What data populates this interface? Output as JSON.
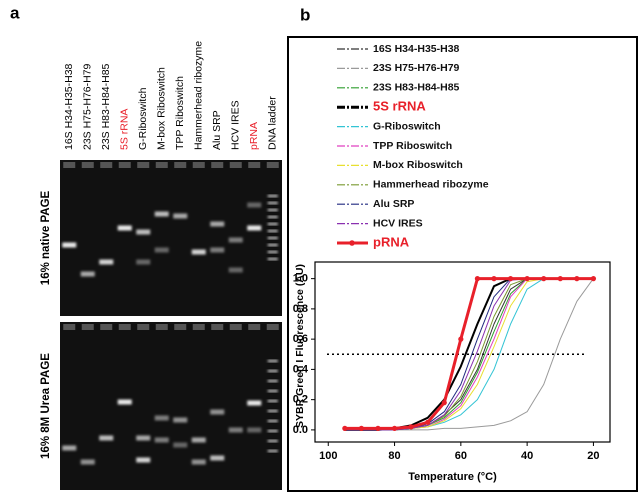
{
  "gel": {
    "panel": "a",
    "lanes": [
      "16S H34-H35-H38",
      "23S H75-H76-H79",
      "23S H83-H84-H85",
      "5S rRNA",
      "G-Riboswitch",
      "M-box Riboswitch",
      "TPP Riboswitch",
      "Hammerhead ribozyme",
      "Alu SRP",
      "HCV IRES",
      "pRNA",
      "DNA ladder"
    ],
    "highlight": [
      3,
      10
    ],
    "highlight_color": "#e8202a",
    "gels": [
      "16%  native PAGE",
      "16% 8M Urea PAGE"
    ]
  },
  "chart_data": {
    "type": "line",
    "panel": "b",
    "xlabel": "Temperature (°C)",
    "ylabel": "SYBR Green I Fluorescence (AU)",
    "x": [
      95,
      90,
      85,
      80,
      75,
      70,
      65,
      60,
      55,
      50,
      45,
      40,
      35,
      30,
      25,
      20
    ],
    "xlim": [
      104,
      15
    ],
    "xticks": [
      100,
      80,
      60,
      40,
      20
    ],
    "ylim": [
      -0.08,
      1.11
    ],
    "yticks": [
      {
        "value": 0,
        "label": "0.0"
      },
      0.2,
      0.4,
      0.6,
      0.8,
      {
        "value": 1,
        "label": "1.0"
      }
    ],
    "hline": 0.5,
    "series": [
      {
        "name": "16S H34-H35-H38",
        "color": "#333333",
        "values": [
          0,
          0,
          0,
          0,
          0.01,
          0.03,
          0.1,
          0.2,
          0.4,
          0.7,
          0.93,
          1,
          1,
          1,
          1,
          1
        ]
      },
      {
        "name": "23S H75-H76-H79",
        "color": "#9a9a9a",
        "values": [
          0,
          0,
          0,
          0,
          0,
          0,
          0.01,
          0.01,
          0.02,
          0.03,
          0.06,
          0.12,
          0.3,
          0.6,
          0.85,
          1
        ]
      },
      {
        "name": "23S H83-H84-H85",
        "color": "#2e9e2e",
        "values": [
          0,
          0,
          0,
          0,
          0.01,
          0.03,
          0.08,
          0.18,
          0.38,
          0.65,
          0.9,
          1,
          1,
          1,
          1,
          1
        ]
      },
      {
        "name": "5S rRNA",
        "color": "#000000",
        "highlight": true,
        "values": [
          0,
          0,
          0,
          0.01,
          0.03,
          0.08,
          0.2,
          0.42,
          0.7,
          0.95,
          1,
          1,
          1,
          1,
          1,
          1
        ]
      },
      {
        "name": "G-Riboswitch",
        "color": "#33c4d4",
        "values": [
          0,
          0,
          0,
          0,
          0.01,
          0.02,
          0.05,
          0.1,
          0.2,
          0.4,
          0.7,
          0.93,
          1,
          1,
          1,
          1
        ]
      },
      {
        "name": "TPP Riboswitch",
        "color": "#e040c0",
        "values": [
          0,
          0,
          0,
          0,
          0.01,
          0.02,
          0.07,
          0.16,
          0.35,
          0.6,
          0.88,
          1,
          1,
          1,
          1,
          1
        ]
      },
      {
        "name": "M-box Riboswitch",
        "color": "#e8e030",
        "values": [
          0,
          0,
          0,
          0,
          0.01,
          0.02,
          0.06,
          0.14,
          0.3,
          0.55,
          0.82,
          0.98,
          1,
          1,
          1,
          1
        ]
      },
      {
        "name": "Hammerhead ribozyme",
        "color": "#7a9a30",
        "values": [
          0,
          0,
          0,
          0,
          0.01,
          0.03,
          0.09,
          0.22,
          0.45,
          0.75,
          0.96,
          1,
          1,
          1,
          1,
          1
        ]
      },
      {
        "name": "Alu SRP",
        "color": "#202a80",
        "values": [
          0,
          0,
          0,
          0,
          0.01,
          0.04,
          0.12,
          0.3,
          0.6,
          0.88,
          1,
          1,
          1,
          1,
          1,
          1
        ]
      },
      {
        "name": "HCV IRES",
        "color": "#8a30b0",
        "values": [
          0,
          0,
          0,
          0,
          0.01,
          0.03,
          0.1,
          0.26,
          0.52,
          0.82,
          0.99,
          1,
          1,
          1,
          1,
          1
        ]
      },
      {
        "name": "pRNA",
        "color": "#e8202a",
        "highlight": true,
        "marker": "o",
        "values": [
          0.01,
          0.01,
          0.01,
          0.01,
          0.02,
          0.05,
          0.18,
          0.6,
          1,
          1,
          1,
          1,
          1,
          1,
          1,
          1
        ]
      }
    ]
  }
}
